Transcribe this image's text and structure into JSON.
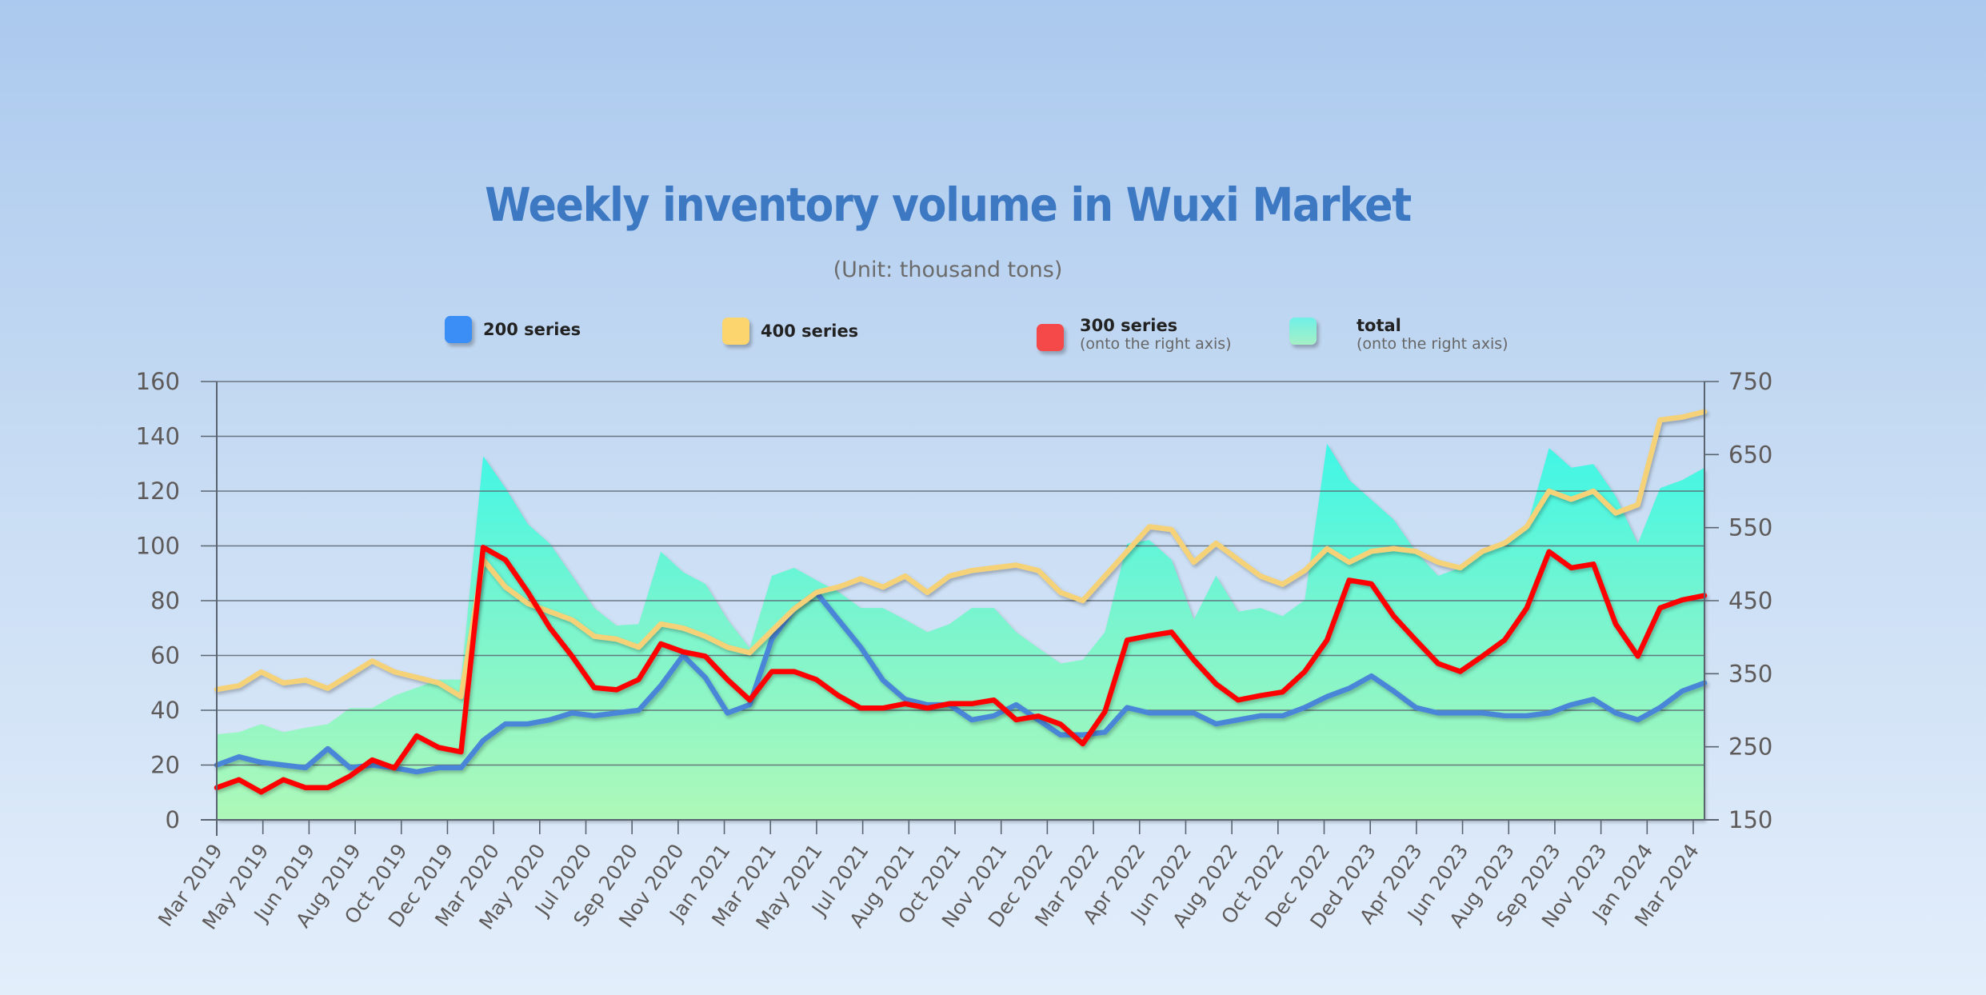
{
  "chart_data": {
    "type": "line",
    "title": "Weekly inventory volume in Wuxi Market",
    "subtitle": "(Unit: thousand tons)",
    "xlabel": "",
    "ylabel": "",
    "grid": true,
    "legend_position": "top",
    "left_axis": {
      "ylim": [
        0,
        160
      ],
      "ticks": [
        "0",
        "20",
        "40",
        "60",
        "80",
        "100",
        "120",
        "140",
        "160"
      ]
    },
    "right_axis": {
      "ylim": [
        150,
        750
      ],
      "ticks": [
        "150",
        "250",
        "350",
        "450",
        "550",
        "650",
        "750"
      ]
    },
    "x_tick_labels": [
      "Mar 2019",
      "May 2019",
      "Jun 2019",
      "Aug 2019",
      "Oct 2019",
      "Dec 2019",
      "Mar 2020",
      "May 2020",
      "Jul 2020",
      "Sep 2020",
      "Nov 2020",
      "Jan 2021",
      "Mar 2021",
      "May 2021",
      "Jul 2021",
      "Aug 2021",
      "Oct 2021",
      "Nov 2021",
      "Dec 2022",
      "Mar 2022",
      "Apr 2022",
      "Jun 2022",
      "Aug 2022",
      "Oct 2022",
      "Dec 2022",
      "Ded 2023",
      "Apr 2023",
      "Jun 2023",
      "Aug 2023",
      "Sep 2023",
      "Nov 2023",
      "Jan 2024",
      "Mar 2024"
    ],
    "series": [
      {
        "name": "total",
        "note": "(onto the right axis)",
        "axis": "right",
        "kind": "area",
        "color": "#45f5e2",
        "values": [
          267,
          270,
          281,
          270,
          276,
          281,
          303,
          303,
          320,
          331,
          342,
          342,
          648,
          604,
          555,
          528,
          484,
          440,
          416,
          418,
          517,
          489,
          473,
          424,
          385,
          484,
          495,
          478,
          462,
          440,
          440,
          424,
          407,
          418,
          440,
          440,
          407,
          385,
          364,
          369,
          407,
          528,
          533,
          506,
          424,
          484,
          435,
          440,
          429,
          451,
          665,
          615,
          588,
          561,
          517,
          484,
          495,
          517,
          528,
          550,
          659,
          632,
          637,
          593,
          528,
          604,
          615,
          632
        ]
      },
      {
        "name": "200 series",
        "axis": "left",
        "kind": "line",
        "color": "#4a86d8",
        "values": [
          20,
          23,
          21,
          20,
          19,
          26,
          19,
          20,
          19,
          17.5,
          19,
          19,
          29,
          35,
          35,
          36.5,
          39,
          38,
          39,
          40,
          49,
          60,
          52,
          39,
          42,
          66,
          77,
          83,
          73,
          63,
          51,
          44,
          42,
          42,
          36.5,
          38,
          42,
          36.5,
          31,
          31,
          32,
          41,
          39,
          39,
          39,
          35,
          36.5,
          38,
          38,
          41,
          45,
          48,
          52.5,
          47,
          41,
          39,
          39,
          39,
          38,
          38,
          39,
          42,
          44,
          39,
          36.5,
          41,
          47,
          50
        ]
      },
      {
        "name": "400 series",
        "axis": "left",
        "kind": "line",
        "color": "#f5d278",
        "values": [
          47.6,
          49,
          54,
          50,
          51,
          48,
          53,
          58,
          54,
          52,
          50,
          45,
          95,
          85,
          79,
          76,
          73,
          67,
          66,
          63,
          71.5,
          70,
          67,
          63,
          61,
          69,
          77,
          83,
          85,
          88,
          85,
          89,
          83,
          89,
          91,
          92,
          93,
          91,
          83,
          80,
          89,
          98,
          107,
          106,
          94,
          101,
          95,
          89,
          86,
          91,
          99,
          94,
          98,
          99,
          98,
          94,
          92,
          98,
          101,
          107,
          120,
          117,
          120,
          112,
          115,
          146,
          147,
          149
        ]
      },
      {
        "name": "300 series",
        "note": "(onto the right axis)",
        "axis": "right",
        "kind": "line",
        "color": "#ff0000",
        "values": [
          194,
          205,
          188,
          205,
          194,
          194,
          210,
          232,
          221,
          265,
          249,
          243,
          523,
          506,
          462,
          413,
          374,
          331,
          328,
          342,
          391,
          380,
          374,
          342,
          314,
          353,
          353,
          342,
          320,
          303,
          303,
          309,
          303,
          309,
          309,
          314,
          287,
          292,
          281,
          254,
          298,
          396,
          402,
          407,
          369,
          336,
          314,
          320,
          325,
          353,
          396,
          478,
          473,
          429,
          396,
          364,
          353,
          374,
          396,
          440,
          517,
          495,
          500,
          418,
          374,
          440,
          451,
          457
        ]
      }
    ]
  },
  "legend": [
    {
      "label": "200 series",
      "note": "",
      "color": "#3a8ef5"
    },
    {
      "label": "400 series",
      "note": "",
      "color": "#fcd56e"
    },
    {
      "label": "300 series",
      "note": "(onto the right axis)",
      "color": "#f54848"
    },
    {
      "label": "total",
      "note": "(onto the right axis)",
      "color": "#6ef0e6"
    }
  ]
}
